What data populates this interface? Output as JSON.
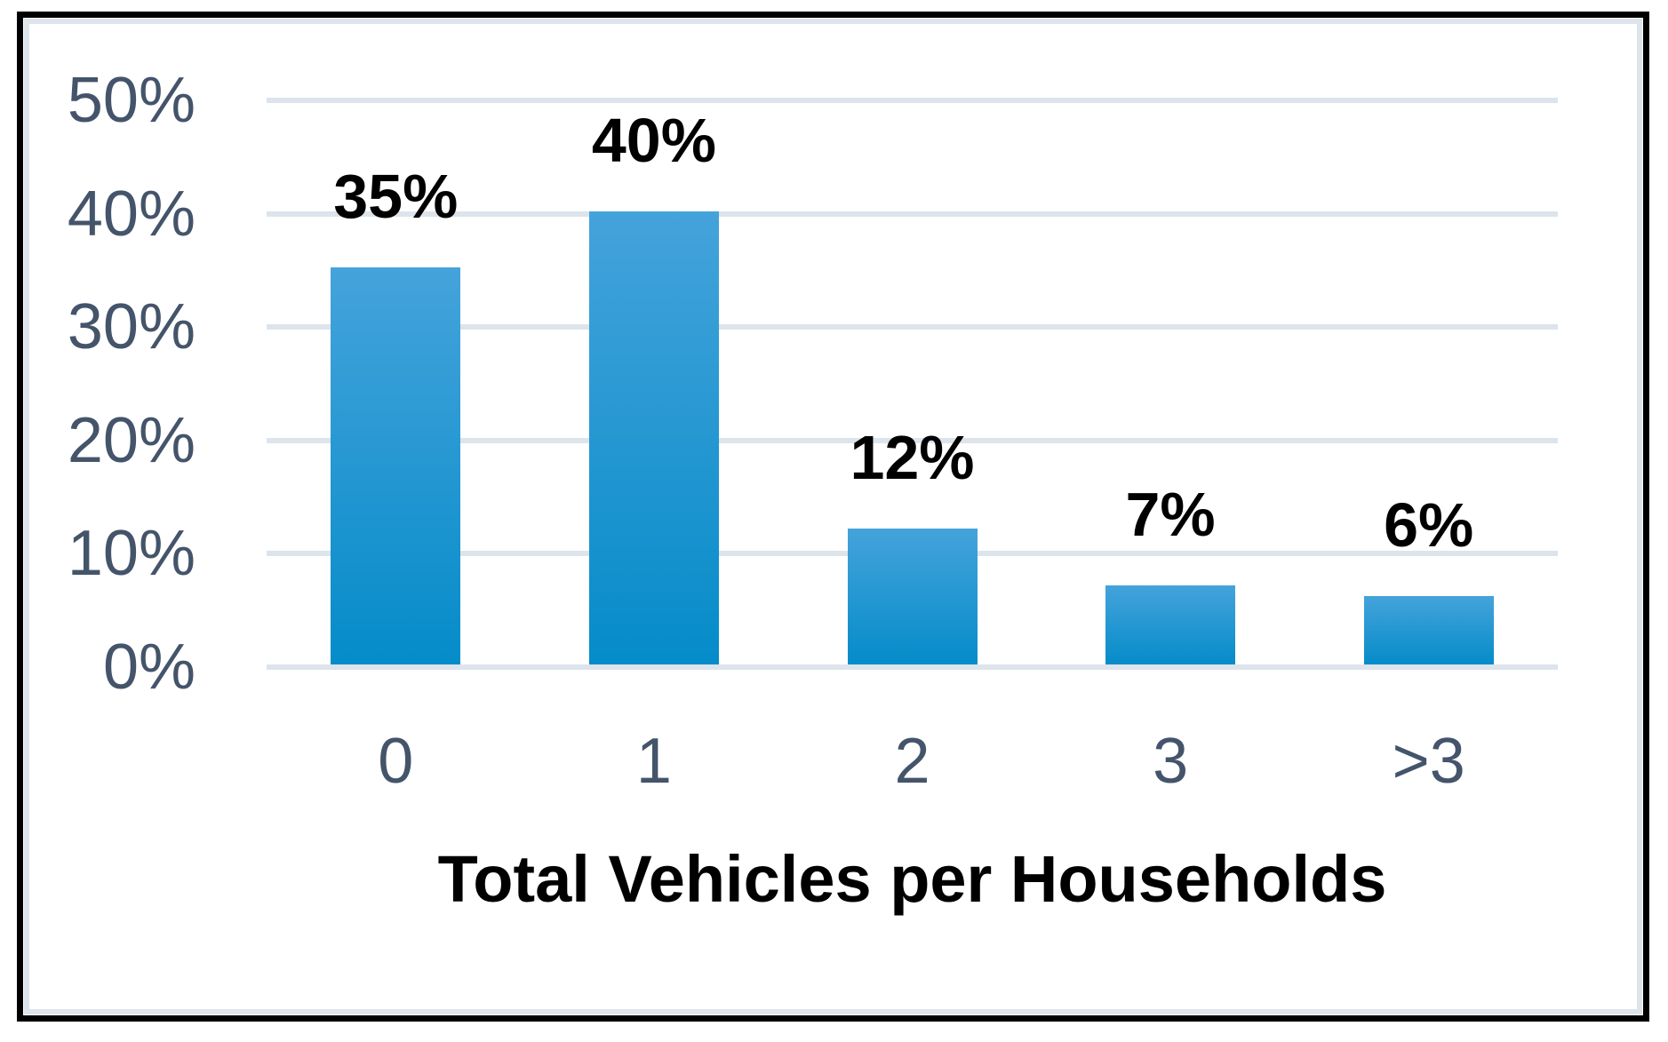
{
  "chart_data": {
    "type": "bar",
    "categories": [
      "0",
      "1",
      "2",
      "3",
      ">3"
    ],
    "values": [
      35,
      40,
      12,
      7,
      6
    ],
    "data_labels": [
      "35%",
      "40%",
      "12%",
      "7%",
      "6%"
    ],
    "xlabel": "Total Vehicles per Households",
    "ylabel": "",
    "ylim": [
      0,
      50
    ],
    "ytick_step": 10,
    "ytick_labels": [
      "0%",
      "10%",
      "20%",
      "30%",
      "40%",
      "50%"
    ],
    "grid": true,
    "legend_position": "none",
    "colors": {
      "bar_gradient_top": "#45a3db",
      "bar_gradient_bottom": "#058cc9",
      "gridline": "#dde4eb",
      "axis_text": "#44546a",
      "data_label_text": "#000000",
      "frame_border": "#dde4eb",
      "outer_border": "#000000",
      "plot_background": "#ffffff"
    }
  }
}
